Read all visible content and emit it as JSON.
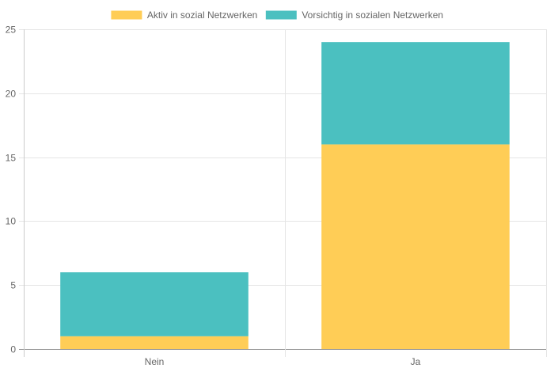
{
  "chart_data": {
    "type": "bar",
    "stacked": true,
    "categories": [
      "Nein",
      "Ja"
    ],
    "series": [
      {
        "name": "Aktiv in sozial Netzwerken",
        "values": [
          1,
          16
        ],
        "color": "#ffcd56"
      },
      {
        "name": "Vorsichtig in sozialen Netzwerken",
        "values": [
          5,
          8
        ],
        "color": "#4bc0c0"
      }
    ],
    "ylim": [
      0,
      25
    ],
    "yticks": [
      0,
      5,
      10,
      15,
      20,
      25
    ],
    "grid": true,
    "legend": "top"
  }
}
